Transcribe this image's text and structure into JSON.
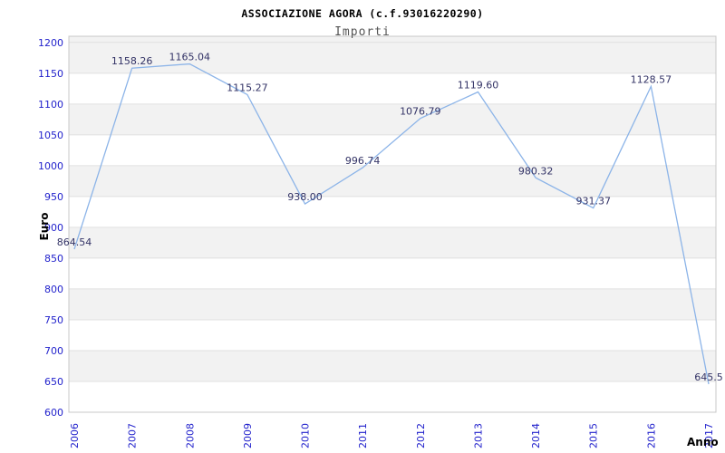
{
  "chart_data": {
    "type": "line",
    "title": "ASSOCIAZIONE AGORA (c.f.93016220290)",
    "subtitle": "Importi",
    "xlabel": "Anno",
    "ylabel": "Euro",
    "categories": [
      "2006",
      "2007",
      "2008",
      "2009",
      "2010",
      "2011",
      "2012",
      "2013",
      "2014",
      "2015",
      "2016",
      "2017"
    ],
    "values": [
      864.54,
      1158.26,
      1165.04,
      1115.27,
      938.0,
      996.74,
      1076.79,
      1119.6,
      980.32,
      931.37,
      1128.57,
      645.5
    ],
    "point_labels": [
      "864.54",
      "1158.26",
      "1165.04",
      "1115.27",
      "938.00",
      "996.74",
      "1076.79",
      "1119.60",
      "980.32",
      "931.37",
      "1128.57",
      "645.5"
    ],
    "yticks": [
      600,
      650,
      700,
      750,
      800,
      850,
      900,
      950,
      1000,
      1050,
      1100,
      1150,
      1200
    ],
    "ylim": [
      600,
      1210
    ],
    "grid": "horizontal alternating bands every 50, gray band below each even gridline",
    "legend": "none",
    "markers": "none",
    "colors": {
      "line": "#8cb4e8",
      "band": "#f2f2f2",
      "gridline": "#e0e0e0",
      "plot_border": "#c8c8c8",
      "tick_label": "#2222cc",
      "data_label": "#333366",
      "title": "#000000",
      "subtitle": "#555555",
      "axis_title": "#000000",
      "background": "#ffffff"
    }
  }
}
